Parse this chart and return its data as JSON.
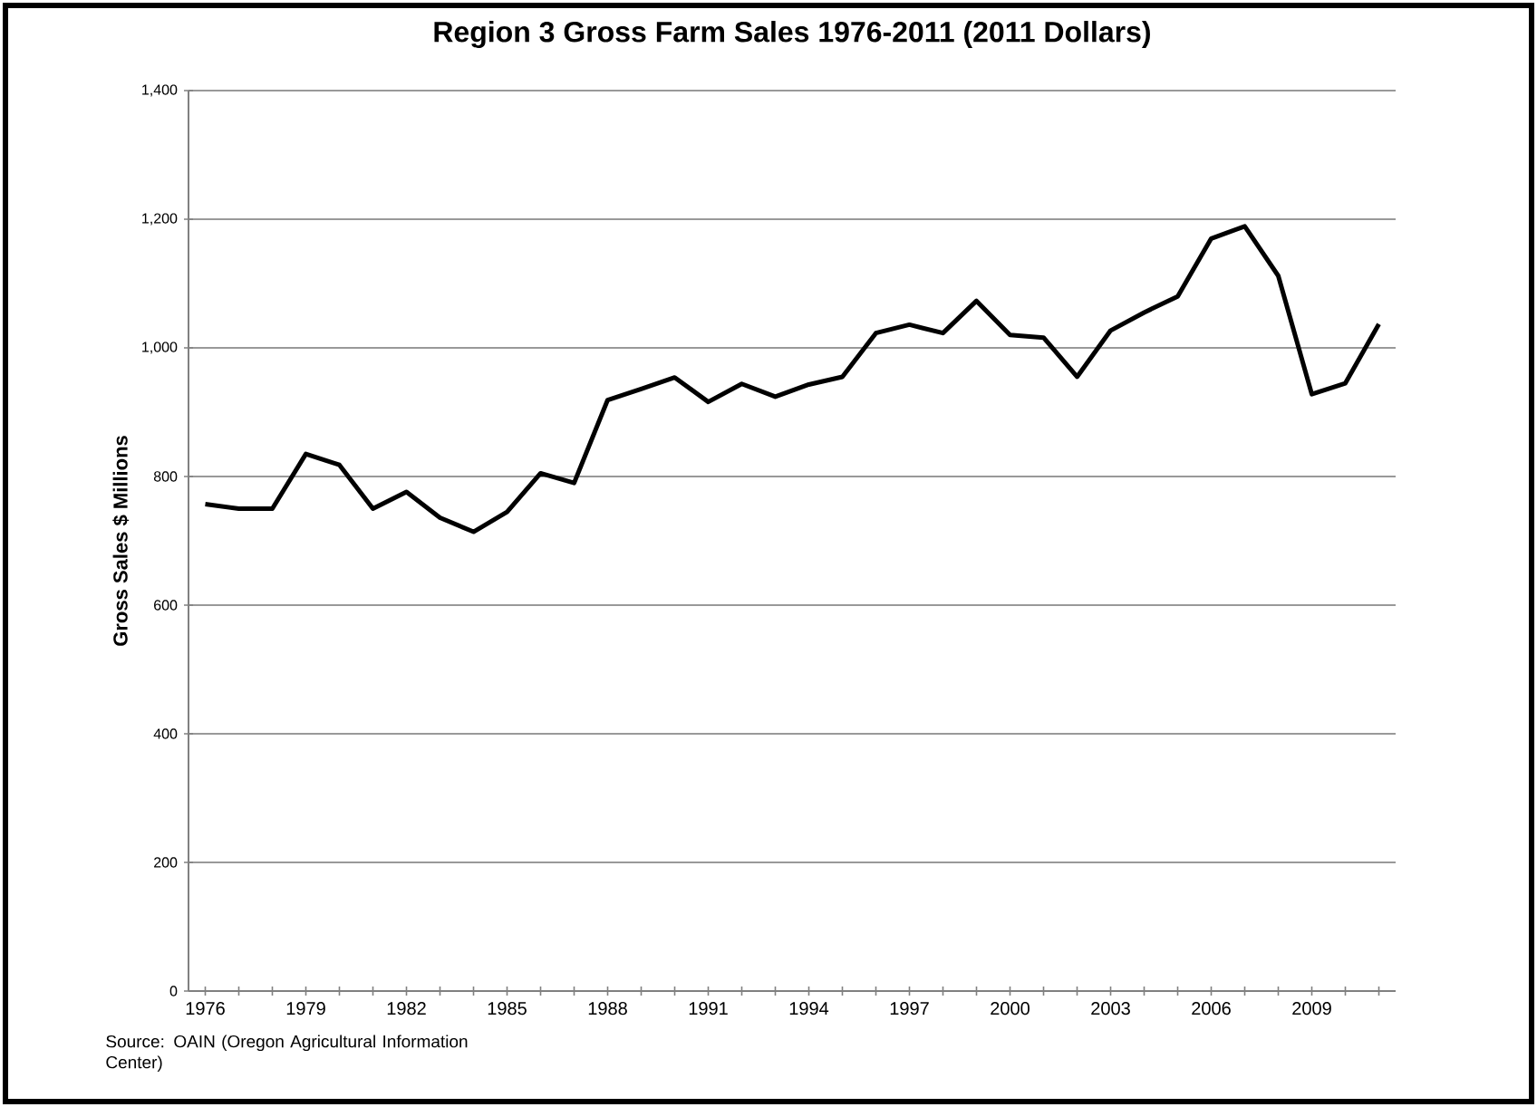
{
  "chart_data": {
    "type": "line",
    "title": "Region 3 Gross Farm Sales 1976-2011 (2011 Dollars)",
    "ylabel": "Gross Sales $ Millions",
    "categories": [
      "1976",
      null,
      null,
      "1979",
      null,
      null,
      "1982",
      null,
      null,
      "1985",
      null,
      null,
      "1988",
      null,
      null,
      "1991",
      null,
      null,
      "1994",
      null,
      null,
      "1997",
      null,
      null,
      "2000",
      null,
      null,
      "2003",
      null,
      null,
      "2006",
      null,
      null,
      "2009",
      null,
      null
    ],
    "series": [
      {
        "color": "#000000",
        "values": [
          757,
          750,
          750,
          835,
          818,
          750,
          776,
          736,
          714,
          745,
          805,
          790,
          919,
          936,
          954,
          916,
          944,
          924,
          943,
          955,
          1023,
          1036,
          1023,
          1073,
          1020,
          1016,
          955,
          1027,
          1055,
          1080,
          1170,
          1189,
          1112,
          928,
          945,
          1037
        ]
      }
    ],
    "ylim": [
      0,
      1400
    ],
    "yticks": [
      {
        "value": 0,
        "label": "0"
      },
      {
        "value": 200,
        "label": "200"
      },
      {
        "value": 400,
        "label": "400"
      },
      {
        "value": 600,
        "label": "600"
      },
      {
        "value": 800,
        "label": "800"
      },
      {
        "value": 1000,
        "label": "1,000"
      },
      {
        "value": 1200,
        "label": "1,200"
      },
      {
        "value": 1400,
        "label": "1,400"
      }
    ],
    "grid": "y",
    "marker": "none",
    "line_style": "solid",
    "annotations": [
      "Source: OAIN (Oregon Agricultural Information Center)"
    ]
  }
}
